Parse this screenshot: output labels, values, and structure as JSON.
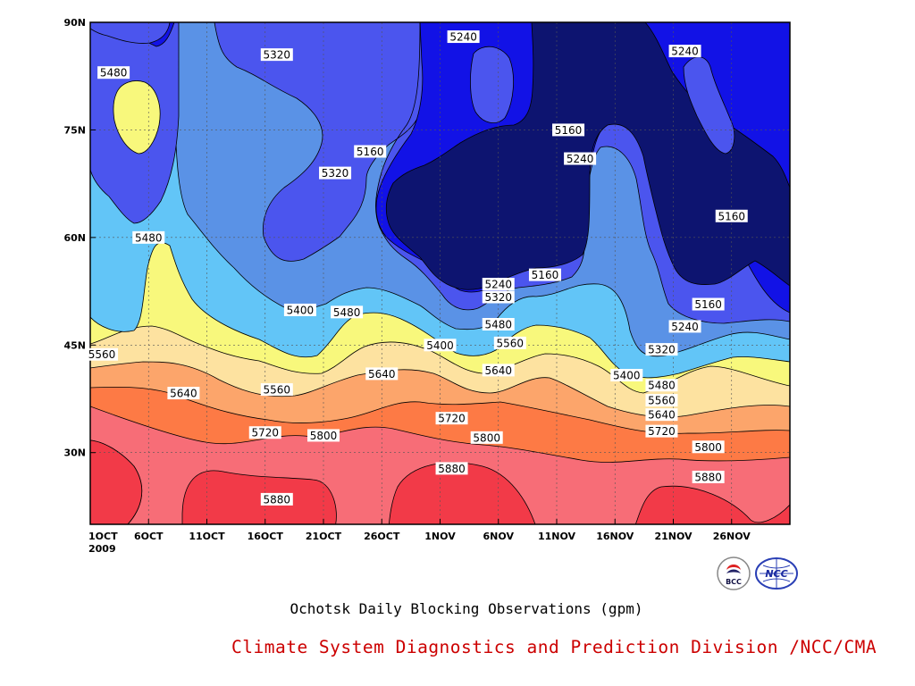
{
  "caption": "Ochotsk Daily Blocking Observations (gpm)",
  "credit": "Climate System Diagnostics and Prediction Division /NCC/CMA",
  "logos": [
    {
      "name": "bcc-logo",
      "text": "BCC"
    },
    {
      "name": "ncc-logo",
      "text": "NCC"
    }
  ],
  "chart_data": {
    "type": "heatmap",
    "title": "Ochotsk Daily Blocking Observations (gpm)",
    "unit": "gpm",
    "x_axis": {
      "ticks": [
        "1OCT",
        "6OCT",
        "11OCT",
        "16OCT",
        "21OCT",
        "26OCT",
        "1NOV",
        "6NOV",
        "11NOV",
        "16NOV",
        "21NOV",
        "26NOV"
      ],
      "year": "2009",
      "range": [
        "2009-10-01",
        "2009-11-30"
      ]
    },
    "y_axis": {
      "ticks": [
        "30N",
        "45N",
        "60N",
        "75N",
        "90N"
      ],
      "range": [
        20,
        90
      ]
    },
    "grid": true,
    "contour_levels": [
      5160,
      5240,
      5320,
      5400,
      5480,
      5560,
      5640,
      5720,
      5800,
      5880
    ],
    "level_colors": {
      "below_5160": "#0d1470",
      "5160_5240": "#1212e6",
      "5240_5320": "#4b55ee",
      "5320_5400": "#5a92e6",
      "5400_5480": "#62c5f7",
      "5480_5560": "#f8f87c",
      "5560_5640": "#fde2a0",
      "5640_5720": "#fca56b",
      "5720_5800": "#fd7a45",
      "5800_5880": "#f76d77",
      "above_5880": "#f23a48"
    },
    "contour_labels": [
      {
        "text": "5480",
        "date": "2009-10-03",
        "lat": 83
      },
      {
        "text": "5320",
        "date": "2009-10-17",
        "lat": 85.5
      },
      {
        "text": "5240",
        "date": "2009-11-02",
        "lat": 88
      },
      {
        "text": "5240",
        "date": "2009-11-21",
        "lat": 86
      },
      {
        "text": "5160",
        "date": "2009-10-25",
        "lat": 72
      },
      {
        "text": "5320",
        "date": "2009-10-22",
        "lat": 69
      },
      {
        "text": "5160",
        "date": "2009-11-11",
        "lat": 75
      },
      {
        "text": "5240",
        "date": "2009-11-12",
        "lat": 71
      },
      {
        "text": "5160",
        "date": "2009-11-25",
        "lat": 63
      },
      {
        "text": "5480",
        "date": "2009-10-06",
        "lat": 60
      },
      {
        "text": "5160",
        "date": "2009-11-09",
        "lat": 54.8
      },
      {
        "text": "5240",
        "date": "2009-11-05",
        "lat": 53.5
      },
      {
        "text": "5320",
        "date": "2009-11-05",
        "lat": 51.7
      },
      {
        "text": "5400",
        "date": "2009-10-19",
        "lat": 49.9
      },
      {
        "text": "5480",
        "date": "2009-10-23",
        "lat": 49.6
      },
      {
        "text": "5160",
        "date": "2009-11-23",
        "lat": 50.7
      },
      {
        "text": "5240",
        "date": "2009-11-21",
        "lat": 47.6
      },
      {
        "text": "5480",
        "date": "2009-11-05",
        "lat": 47.9
      },
      {
        "text": "5560",
        "date": "2009-11-06",
        "lat": 45.3
      },
      {
        "text": "5400",
        "date": "2009-10-31",
        "lat": 45.0
      },
      {
        "text": "5320",
        "date": "2009-11-19",
        "lat": 44.4
      },
      {
        "text": "5560",
        "date": "2009-10-02",
        "lat": 43.7
      },
      {
        "text": "5640",
        "date": "2009-11-05",
        "lat": 41.5
      },
      {
        "text": "5640",
        "date": "2009-10-26",
        "lat": 41.0
      },
      {
        "text": "5400",
        "date": "2009-11-16",
        "lat": 40.8
      },
      {
        "text": "5480",
        "date": "2009-11-19",
        "lat": 39.4
      },
      {
        "text": "5560",
        "date": "2009-10-17",
        "lat": 38.8
      },
      {
        "text": "5640",
        "date": "2009-10-09",
        "lat": 38.3
      },
      {
        "text": "5560",
        "date": "2009-11-19",
        "lat": 37.3
      },
      {
        "text": "5640",
        "date": "2009-11-19",
        "lat": 35.3
      },
      {
        "text": "5720",
        "date": "2009-11-01",
        "lat": 34.8
      },
      {
        "text": "5720",
        "date": "2009-10-16",
        "lat": 32.8
      },
      {
        "text": "5800",
        "date": "2009-10-21",
        "lat": 32.4
      },
      {
        "text": "5720",
        "date": "2009-11-19",
        "lat": 33.0
      },
      {
        "text": "5800",
        "date": "2009-11-04",
        "lat": 32.1
      },
      {
        "text": "5800",
        "date": "2009-11-23",
        "lat": 30.8
      },
      {
        "text": "5880",
        "date": "2009-11-01",
        "lat": 27.8
      },
      {
        "text": "5880",
        "date": "2009-11-23",
        "lat": 26.6
      },
      {
        "text": "5880",
        "date": "2009-10-17",
        "lat": 23.5
      }
    ]
  }
}
